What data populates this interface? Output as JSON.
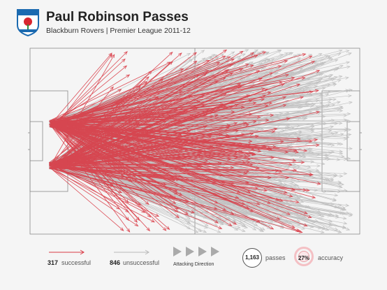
{
  "header": {
    "title": "Paul Robinson Passes",
    "subtitle": "Blackburn Rovers | Premier League 2011-12",
    "crest_icon": "blackburn-rovers-crest-icon"
  },
  "legend": {
    "successful_count": "317",
    "successful_label": "successful",
    "unsuccessful_count": "846",
    "unsuccessful_label": "unsuccessful",
    "attacking_direction_label": "Attacking Direction",
    "total_passes": "1,163",
    "total_passes_label": "passes",
    "accuracy_value": "27%",
    "accuracy_label": "accuracy"
  },
  "colors": {
    "successful": "#d93a45",
    "unsuccessful": "#b9b9b9",
    "pitch_lines": "#8a8a8a",
    "background": "#f5f5f5"
  }
}
